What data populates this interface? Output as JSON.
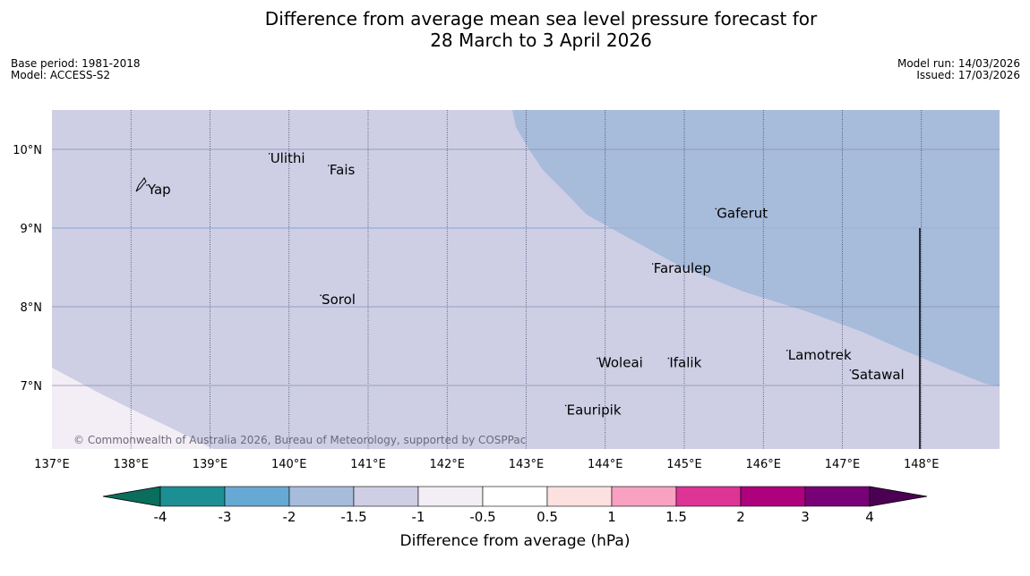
{
  "title": {
    "line1": "Difference from average mean sea level pressure forecast for",
    "line2": "28 March to 3 April 2026"
  },
  "meta_left": {
    "base_period": "Base period: 1981-2018",
    "model": "Model: ACCESS-S2"
  },
  "meta_right": {
    "model_run": "Model run: 14/03/2026",
    "issued": "Issued: 17/03/2026"
  },
  "map": {
    "lon_range": [
      137,
      149
    ],
    "lat_range": [
      6.2,
      10.5
    ],
    "lon_ticks": [
      137,
      138,
      139,
      140,
      141,
      142,
      143,
      144,
      145,
      146,
      147,
      148
    ],
    "lon_tick_labels": [
      "137°E",
      "138°E",
      "139°E",
      "140°E",
      "141°E",
      "142°E",
      "143°E",
      "144°E",
      "145°E",
      "146°E",
      "147°E",
      "148°E"
    ],
    "lat_ticks": [
      10,
      9,
      8,
      7
    ],
    "lat_tick_labels": [
      "10°N",
      "9°N",
      "8°N",
      "7°N"
    ],
    "places": [
      {
        "name": "Yap",
        "lon": 138.2,
        "lat": 9.5
      },
      {
        "name": "Ulithi",
        "lon": 139.75,
        "lat": 9.9
      },
      {
        "name": "Fais",
        "lon": 140.5,
        "lat": 9.75
      },
      {
        "name": "Gaferut",
        "lon": 145.4,
        "lat": 9.2
      },
      {
        "name": "Faraulep",
        "lon": 144.6,
        "lat": 8.5
      },
      {
        "name": "Sorol",
        "lon": 140.4,
        "lat": 8.1
      },
      {
        "name": "Lamotrek",
        "lon": 146.3,
        "lat": 7.4
      },
      {
        "name": "Woleai",
        "lon": 143.9,
        "lat": 7.3
      },
      {
        "name": "Ifalik",
        "lon": 144.8,
        "lat": 7.3
      },
      {
        "name": "Satawal",
        "lon": 147.1,
        "lat": 7.15
      },
      {
        "name": "Eauripik",
        "lon": 143.5,
        "lat": 6.7
      }
    ],
    "copyright": "© Commonwealth of Australia 2026, Bureau of Meteorology, supported by COSPPac",
    "region_colors": {
      "light_pink": "#f3eef5",
      "lavender": "#cecfe5",
      "blue": "#a7bbdb"
    }
  },
  "colorbar": {
    "label": "Difference from average (hPa)",
    "tick_labels": [
      "-4",
      "-3",
      "-2",
      "-1.5",
      "-1",
      "-0.5",
      "0.5",
      "1",
      "1.5",
      "2",
      "3",
      "4"
    ],
    "under_color": "#0a6e5d",
    "over_color": "#4b0054",
    "colors": [
      "#1b8f93",
      "#66a9d4",
      "#a7bbdb",
      "#cecfe5",
      "#f3eef5",
      "#ffffff",
      "#fde0e0",
      "#f8a1c0",
      "#dd3496",
      "#ad017d",
      "#790178"
    ]
  }
}
